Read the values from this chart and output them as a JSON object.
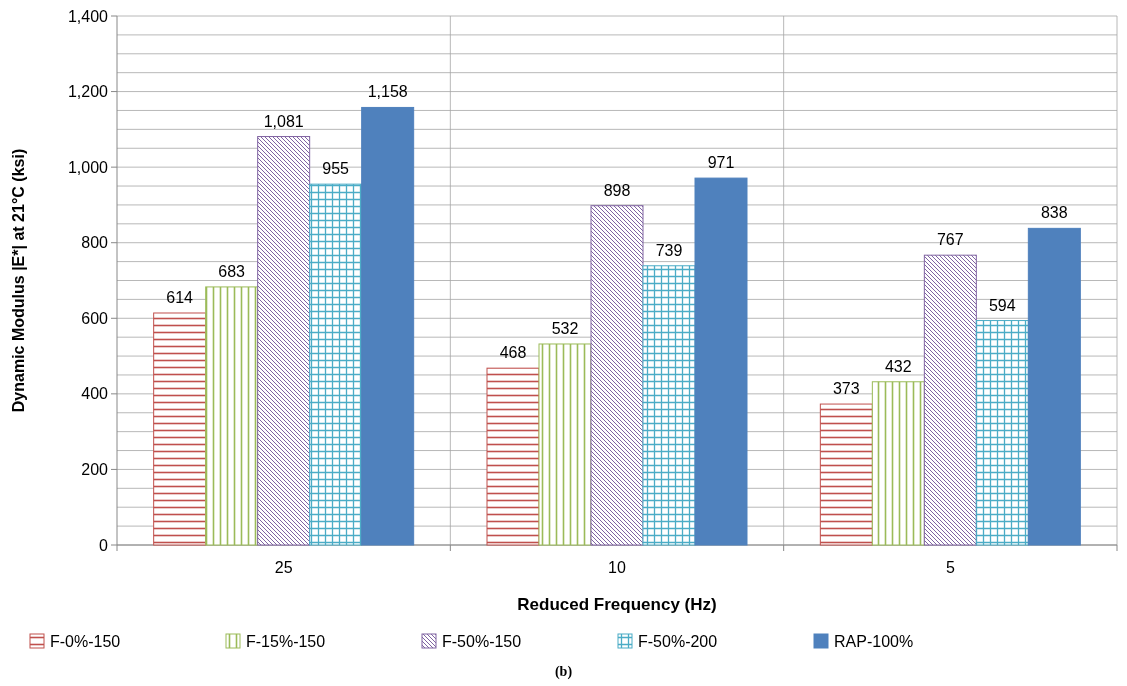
{
  "chart_data": {
    "type": "bar",
    "xlabel": "Reduced Frequency (Hz)",
    "ylabel": "Dynamic Modulus |E*| at 21°C (ksi)",
    "categories": [
      "25",
      "10",
      "5"
    ],
    "series": [
      {
        "name": "F-0%-150",
        "color": "#c0504d",
        "values": [
          614,
          468,
          373
        ],
        "value_labels": [
          "614",
          "468",
          "373"
        ]
      },
      {
        "name": "F-15%-150",
        "color": "#9bbb59",
        "values": [
          683,
          532,
          432
        ],
        "value_labels": [
          "683",
          "532",
          "432"
        ]
      },
      {
        "name": "F-50%-150",
        "color": "#8064a2",
        "values": [
          1081,
          898,
          767
        ],
        "value_labels": [
          "1,081",
          "898",
          "767"
        ]
      },
      {
        "name": "F-50%-200",
        "color": "#4bacc6",
        "values": [
          955,
          739,
          594
        ],
        "value_labels": [
          "955",
          "739",
          "594"
        ]
      },
      {
        "name": "RAP-100%",
        "color": "#4f81bd",
        "values": [
          1158,
          971,
          838
        ],
        "value_labels": [
          "1,158",
          "971",
          "838"
        ]
      }
    ],
    "ylim": [
      0,
      1400
    ],
    "yticks": [
      0,
      {
        "value": 50,
        "label": null
      },
      200,
      {
        "value": 100,
        "label": null
      },
      {
        "value": 150,
        "label": null
      },
      {
        "value": 250,
        "label": null
      },
      {
        "value": 300,
        "label": null
      },
      {
        "value": 350,
        "label": null
      },
      400,
      {
        "value": 450,
        "label": null
      },
      {
        "value": 500,
        "label": null
      },
      {
        "value": 550,
        "label": null
      },
      600,
      {
        "value": 650,
        "label": null
      },
      {
        "value": 700,
        "label": null
      },
      {
        "value": 750,
        "label": null
      },
      800,
      {
        "value": 850,
        "label": null
      },
      {
        "value": 900,
        "label": null
      },
      {
        "value": 950,
        "label": null
      },
      {
        "value": 1000,
        "label": "1,000"
      },
      {
        "value": 1050,
        "label": null
      },
      {
        "value": 1100,
        "label": null
      },
      {
        "value": 1150,
        "label": null
      },
      {
        "value": 1200,
        "label": "1,200"
      },
      {
        "value": 1250,
        "label": null
      },
      {
        "value": 1300,
        "label": null
      },
      {
        "value": 1350,
        "label": null
      },
      {
        "value": 1400,
        "label": "1,400"
      }
    ],
    "grid": true,
    "legend": "bottom",
    "annotations": [
      "(b)"
    ]
  }
}
